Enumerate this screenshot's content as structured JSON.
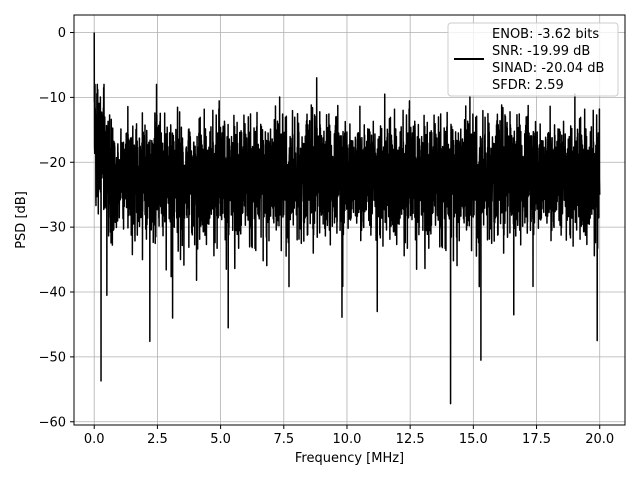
{
  "chart_data": {
    "type": "line",
    "xlabel": "Frequency [MHz]",
    "ylabel": "PSD [dB]",
    "xlim": [
      -0.8,
      21.0
    ],
    "ylim": [
      -60.5,
      2.7
    ],
    "xticks": [
      0.0,
      2.5,
      5.0,
      7.5,
      10.0,
      12.5,
      15.0,
      17.5,
      20.0
    ],
    "xtick_labels": [
      "0.0",
      "2.5",
      "5.0",
      "7.5",
      "10.0",
      "12.5",
      "15.0",
      "17.5",
      "20.0"
    ],
    "yticks": [
      0,
      -10,
      -20,
      -30,
      -40,
      -50,
      -60
    ],
    "ytick_labels": [
      "0",
      "−10",
      "−20",
      "−30",
      "−40",
      "−50",
      "−60"
    ],
    "grid": true,
    "legend_position": "top-right",
    "series": [
      {
        "name": "ENOB: -3.62 bits\nSNR: -19.99 dB\nSINAD: -20.04 dB\nSFDR: 2.59",
        "color": "#000000",
        "description": "Dense noise spectrum, values mostly between about -35 and -12 dB; peak 0 dB near 0 MHz; deep dips about -53.7 at 0.27 MHz, -47.6 at 2.2 MHz, -45.5 at 5.3 MHz, -43.9 at 9.8 MHz, -57.2 at 14.1 MHz, -50.5 at 15.3 MHz, -47.5 at 19.9 MHz",
        "x_range": [
          0.0,
          20.0
        ],
        "key_points": [
          {
            "x": 0.0,
            "y": 0.0
          },
          {
            "x": 0.27,
            "y": -53.7
          },
          {
            "x": 0.5,
            "y": -40.5
          },
          {
            "x": 2.2,
            "y": -47.6
          },
          {
            "x": 3.1,
            "y": -44.0
          },
          {
            "x": 5.3,
            "y": -45.5
          },
          {
            "x": 8.8,
            "y": -7.0
          },
          {
            "x": 9.8,
            "y": -43.9
          },
          {
            "x": 11.2,
            "y": -43.0
          },
          {
            "x": 14.1,
            "y": -57.2
          },
          {
            "x": 15.3,
            "y": -50.5
          },
          {
            "x": 16.6,
            "y": -43.5
          },
          {
            "x": 19.9,
            "y": -47.5
          },
          {
            "x": 20.0,
            "y": -25.0
          }
        ]
      }
    ]
  }
}
